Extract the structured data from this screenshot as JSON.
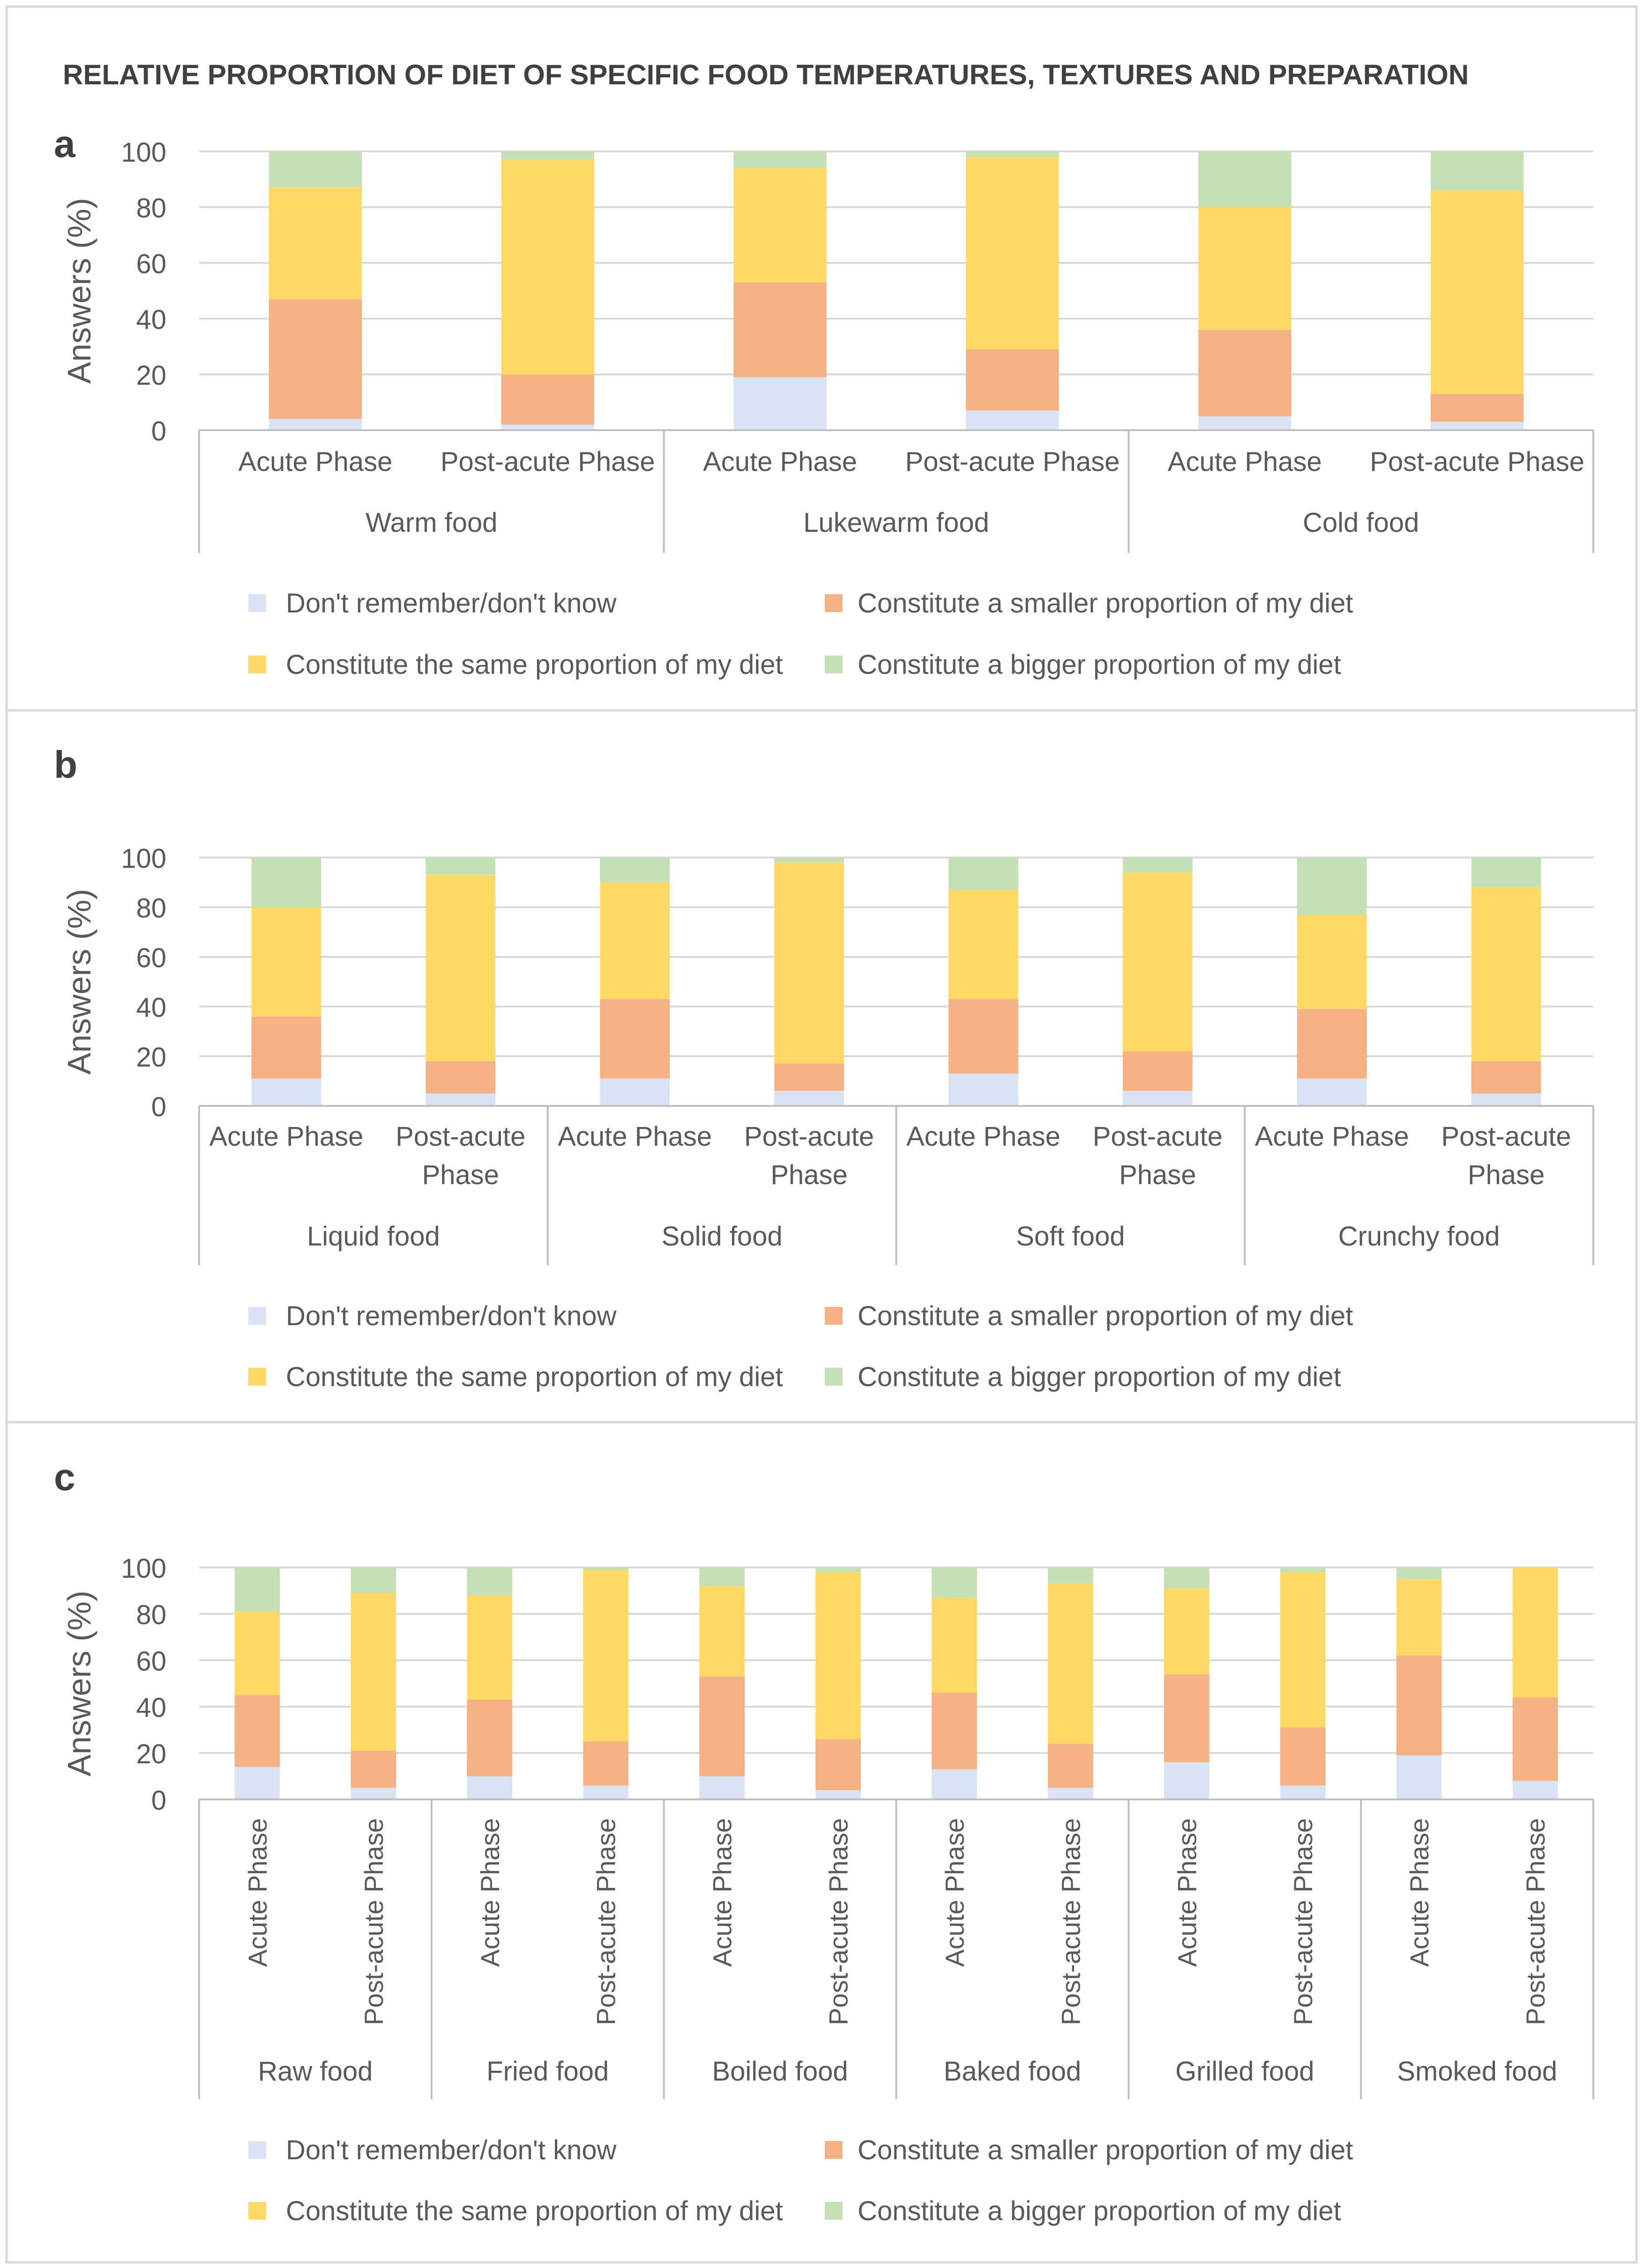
{
  "figure_title": "RELATIVE PROPORTION OF DIET OF SPECIFIC FOOD TEMPERATURES, TEXTURES AND PREPARATION",
  "colors": {
    "dont_know": "#dae3f3",
    "smaller": "#f4b183",
    "same": "#ffd966",
    "bigger": "#c5e0b4",
    "grid": "#d9d9d9",
    "axis": "#bfbfbf",
    "text": "#595959",
    "panel_border": "#d9d9d9"
  },
  "legend": [
    {
      "key": "dont_know",
      "label": "Don't remember/don't know"
    },
    {
      "key": "smaller",
      "label": "Constitute a smaller proportion of my diet"
    },
    {
      "key": "same",
      "label": "Constitute the same proportion of my diet"
    },
    {
      "key": "bigger",
      "label": "Constitute a bigger proportion of my diet"
    }
  ],
  "chart_data": [
    {
      "panel_label": "a",
      "type": "bar",
      "stacked": true,
      "ylabel": "Answers (%)",
      "ylim": [
        0,
        100
      ],
      "yticks": [
        0,
        20,
        40,
        60,
        80,
        100
      ],
      "grid": true,
      "groups": [
        "Warm food",
        "Lukewarm food",
        "Cold food"
      ],
      "phases": [
        "Acute Phase",
        "Post-acute Phase"
      ],
      "categories": [
        "Warm food - Acute Phase",
        "Warm food - Post-acute Phase",
        "Lukewarm food - Acute Phase",
        "Lukewarm food - Post-acute Phase",
        "Cold food - Acute Phase",
        "Cold food - Post-acute Phase"
      ],
      "series": [
        {
          "name": "Don't remember/don't know",
          "key": "dont_know",
          "values": [
            4,
            2,
            19,
            7,
            5,
            3
          ]
        },
        {
          "name": "Constitute a smaller proportion of my diet",
          "key": "smaller",
          "values": [
            43,
            18,
            34,
            22,
            31,
            10
          ]
        },
        {
          "name": "Constitute the same proportion of my diet",
          "key": "same",
          "values": [
            40,
            77,
            41,
            69,
            44,
            73
          ]
        },
        {
          "name": "Constitute a bigger proportion of my diet",
          "key": "bigger",
          "values": [
            13,
            3,
            6,
            2,
            20,
            14
          ]
        }
      ],
      "legend_position": "bottom"
    },
    {
      "panel_label": "b",
      "type": "bar",
      "stacked": true,
      "ylabel": "Answers (%)",
      "ylim": [
        0,
        100
      ],
      "yticks": [
        0,
        20,
        40,
        60,
        80,
        100
      ],
      "grid": true,
      "groups": [
        "Liquid food",
        "Solid food",
        "Soft food",
        "Crunchy food"
      ],
      "phases": [
        "Acute Phase",
        "Post-acute Phase"
      ],
      "categories": [
        "Liquid food - Acute Phase",
        "Liquid food - Post-acute Phase",
        "Solid food - Acute Phase",
        "Solid food - Post-acute Phase",
        "Soft food - Acute Phase",
        "Soft food - Post-acute Phase",
        "Crunchy food - Acute Phase",
        "Crunchy food - Post-acute Phase"
      ],
      "series": [
        {
          "name": "Don't remember/don't know",
          "key": "dont_know",
          "values": [
            11,
            5,
            11,
            6,
            13,
            6,
            11,
            5
          ]
        },
        {
          "name": "Constitute a smaller proportion of my diet",
          "key": "smaller",
          "values": [
            25,
            13,
            32,
            11,
            30,
            16,
            28,
            13
          ]
        },
        {
          "name": "Constitute the same proportion of my diet",
          "key": "same",
          "values": [
            44,
            75,
            47,
            81,
            44,
            72,
            38,
            70
          ]
        },
        {
          "name": "Constitute a bigger proportion of my diet",
          "key": "bigger",
          "values": [
            20,
            7,
            10,
            2,
            13,
            6,
            23,
            12
          ]
        }
      ],
      "legend_position": "bottom"
    },
    {
      "panel_label": "c",
      "type": "bar",
      "stacked": true,
      "ylabel": "Answers (%)",
      "ylim": [
        0,
        100
      ],
      "yticks": [
        0,
        20,
        40,
        60,
        80,
        100
      ],
      "grid": true,
      "groups": [
        "Raw food",
        "Fried food",
        "Boiled food",
        "Baked food",
        "Grilled food",
        "Smoked food"
      ],
      "phases": [
        "Acute Phase",
        "Post-acute Phase"
      ],
      "categories": [
        "Raw food - Acute Phase",
        "Raw food - Post-acute Phase",
        "Fried food - Acute Phase",
        "Fried food - Post-acute Phase",
        "Boiled food - Acute Phase",
        "Boiled food - Post-acute Phase",
        "Baked food - Acute Phase",
        "Baked food - Post-acute Phase",
        "Grilled food - Acute Phase",
        "Grilled food - Post-acute Phase",
        "Smoked food - Acute Phase",
        "Smoked food - Post-acute Phase"
      ],
      "series": [
        {
          "name": "Don't remember/don't know",
          "key": "dont_know",
          "values": [
            14,
            5,
            10,
            6,
            10,
            4,
            13,
            5,
            16,
            6,
            19,
            8
          ]
        },
        {
          "name": "Constitute a smaller proportion of my diet",
          "key": "smaller",
          "values": [
            31,
            16,
            33,
            19,
            43,
            22,
            33,
            19,
            38,
            25,
            43,
            36
          ]
        },
        {
          "name": "Constitute the same proportion of my diet",
          "key": "same",
          "values": [
            36,
            68,
            45,
            74,
            39,
            72,
            41,
            69,
            37,
            67,
            33,
            56
          ]
        },
        {
          "name": "Constitute a bigger proportion of my diet",
          "key": "bigger",
          "values": [
            19,
            11,
            12,
            1,
            8,
            2,
            13,
            7,
            9,
            2,
            5,
            0
          ]
        }
      ],
      "legend_position": "bottom"
    }
  ]
}
